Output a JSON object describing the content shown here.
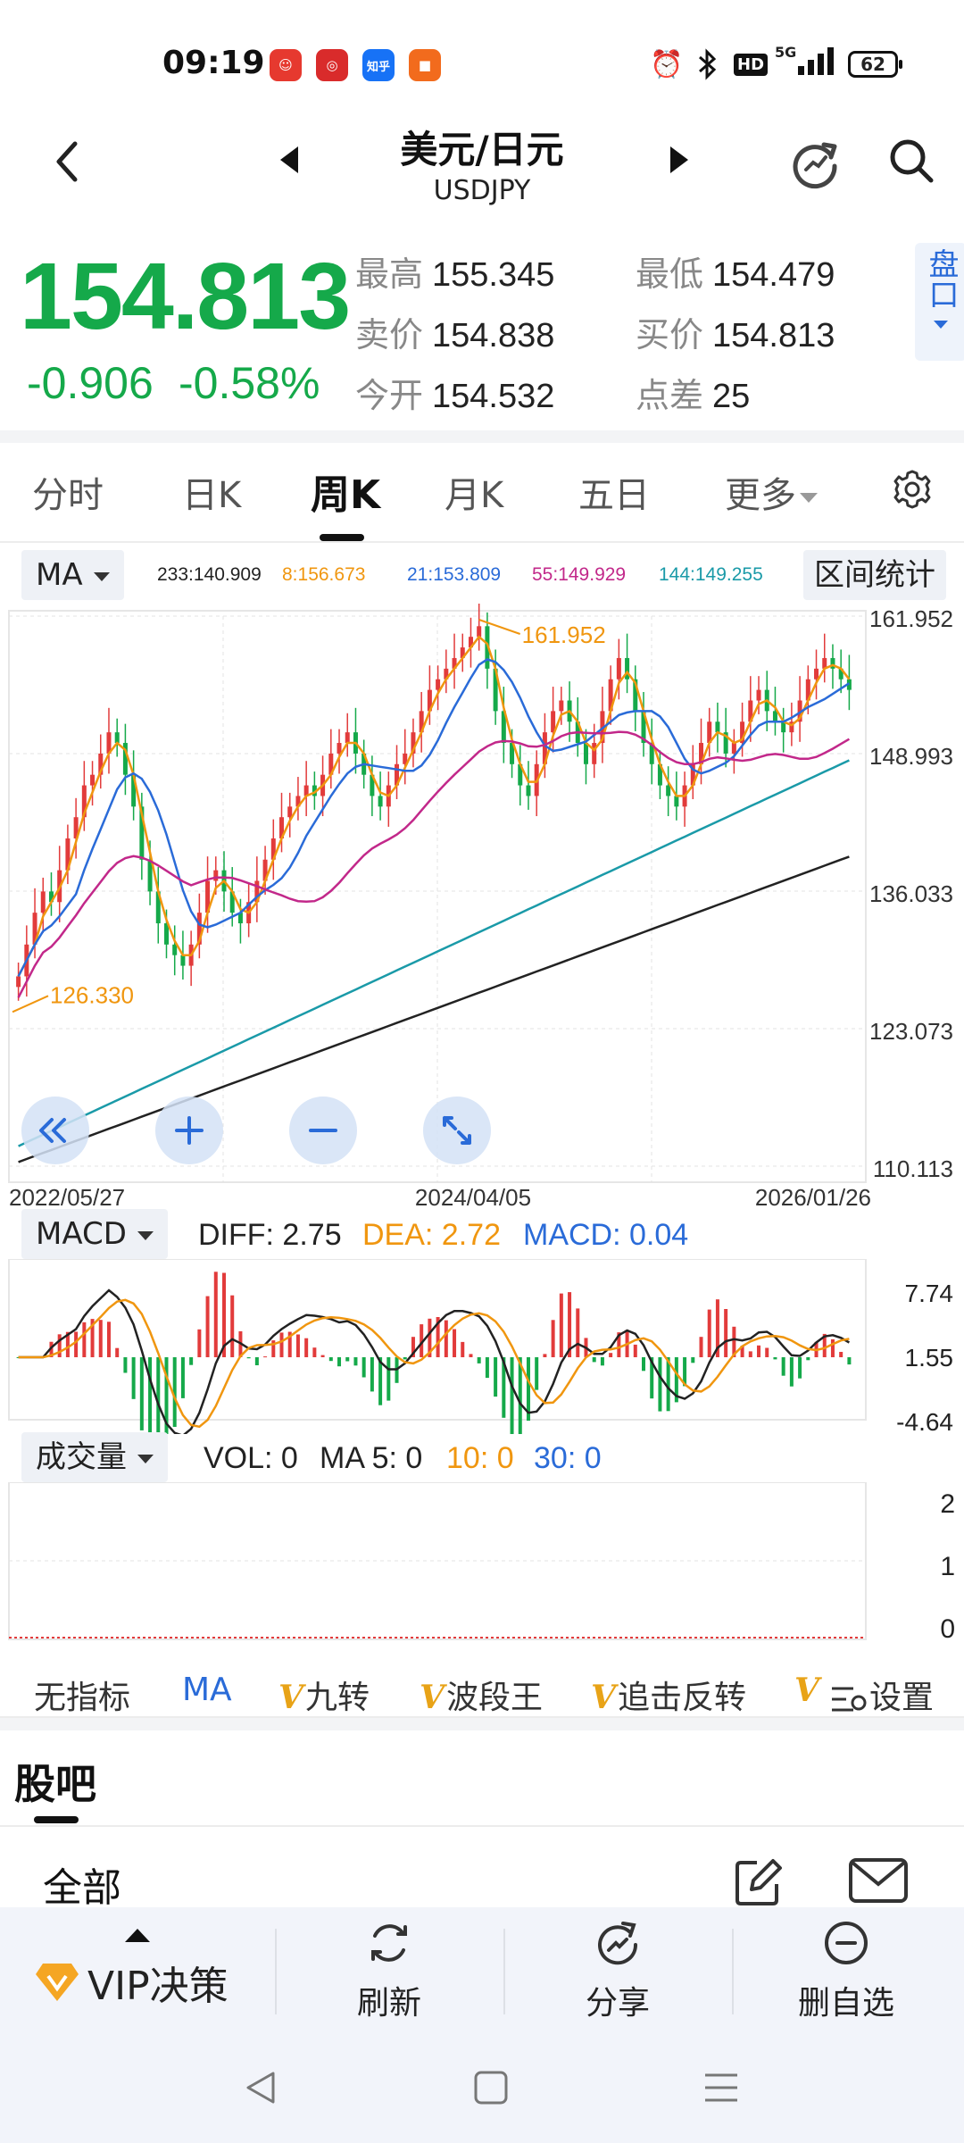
{
  "status_bar": {
    "time": "09:19",
    "battery": "62",
    "network": "5G",
    "hd": "HD",
    "app_icons": [
      {
        "name": "app-icon-1",
        "color": "#e6392f",
        "text": ""
      },
      {
        "name": "app-icon-2",
        "color": "#d92b2b",
        "text": ""
      },
      {
        "name": "zhihu-icon",
        "color": "#1772f6",
        "text": "知乎"
      },
      {
        "name": "app-icon-4",
        "color": "#f26b1d",
        "text": ""
      }
    ]
  },
  "header": {
    "title": "美元/日元",
    "subtitle": "USDJPY"
  },
  "quote": {
    "price": "154.813",
    "change": "-0.906",
    "change_pct": "-0.58%",
    "high_label": "最高",
    "high": "155.345",
    "low_label": "最低",
    "low": "154.479",
    "ask_label": "卖价",
    "ask": "154.838",
    "bid_label": "买价",
    "bid": "154.813",
    "open_label": "今开",
    "open": "154.532",
    "spread_label": "点差",
    "spread": "25",
    "pankou": "盘口",
    "up_color": "#e23b3b",
    "down_color": "#15a94a"
  },
  "tabs": [
    {
      "label": "分时",
      "active": false
    },
    {
      "label": "日K",
      "active": false
    },
    {
      "label": "周K",
      "active": true
    },
    {
      "label": "月K",
      "active": false
    },
    {
      "label": "五日",
      "active": false
    },
    {
      "label": "更多",
      "active": false
    }
  ],
  "ma_bar": {
    "selector": "MA",
    "ma233": "233:140.909",
    "ma8": "8:156.673",
    "ma21": "21:153.809",
    "ma55": "55:149.929",
    "ma144": "144:149.255",
    "interval_btn": "区间统计"
  },
  "chart_data": {
    "type": "candlestick",
    "period": "weekly",
    "y_ticks": [
      "161.952",
      "148.993",
      "136.033",
      "123.073",
      "110.113"
    ],
    "ylim": [
      110.113,
      161.952
    ],
    "x_ticks": [
      "2022/05/27",
      "2024/04/05",
      "2026/01/26"
    ],
    "annotations": [
      {
        "label": "161.952",
        "type": "high"
      },
      {
        "label": "126.330",
        "type": "low"
      }
    ],
    "series": [
      {
        "name": "MA8",
        "color": "#f0960f",
        "last": 156.673
      },
      {
        "name": "MA21",
        "color": "#2a6bd8",
        "last": 153.809
      },
      {
        "name": "MA55",
        "color": "#c2288a",
        "last": 149.929
      },
      {
        "name": "MA144",
        "color": "#1a9aa8",
        "last": 149.255
      },
      {
        "name": "MA233",
        "color": "#222222",
        "last": 140.909
      }
    ],
    "closes": [
      128,
      131,
      134,
      136,
      135,
      138,
      141,
      143,
      146,
      147,
      149,
      151,
      150,
      147,
      144,
      139,
      136,
      133,
      131,
      130,
      129,
      131,
      134,
      137,
      138,
      136,
      134,
      133,
      135,
      137,
      139,
      141,
      143,
      144,
      145,
      146,
      145,
      147,
      149,
      150,
      151,
      149,
      147,
      145,
      144,
      146,
      148,
      149,
      151,
      153,
      155,
      156,
      157,
      158,
      159,
      160,
      161,
      157,
      153,
      150,
      148,
      146,
      145,
      148,
      151,
      153,
      154,
      152,
      150,
      148,
      150,
      153,
      156,
      158,
      156,
      153,
      150,
      148,
      146,
      145,
      144,
      146,
      148,
      150,
      152,
      151,
      149,
      150,
      152,
      154,
      155,
      153,
      152,
      151,
      152,
      154,
      156,
      157,
      158,
      157,
      156,
      155
    ]
  },
  "macd": {
    "selector": "MACD",
    "diff": "DIFF: 2.75",
    "dea": "DEA: 2.72",
    "macd": "MACD: 0.04",
    "y_ticks": [
      "7.74",
      "1.55",
      "-4.64"
    ]
  },
  "volume": {
    "selector": "成交量",
    "vol": "VOL: 0",
    "ma5": "MA 5: 0",
    "ma10": "10: 0",
    "ma30": "30: 0",
    "y_ticks": [
      "2",
      "1",
      "0"
    ]
  },
  "indicators": [
    "无指标",
    "MA",
    "九转",
    "波段王",
    "追击反转",
    "V",
    "设置"
  ],
  "guba": {
    "title": "股吧",
    "all": "全部"
  },
  "actions": {
    "vip": "VIP决策",
    "refresh": "刷新",
    "share": "分享",
    "remove": "删自选"
  }
}
